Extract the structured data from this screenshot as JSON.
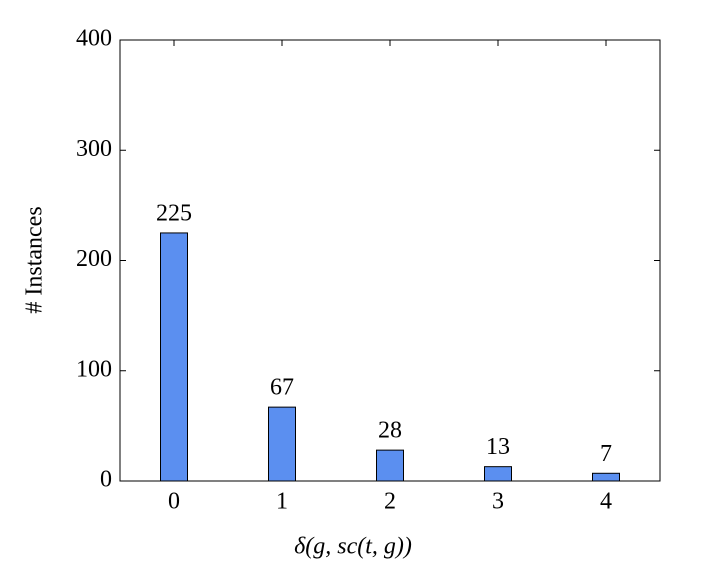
{
  "chart_data": {
    "type": "bar",
    "x": [
      0,
      1,
      2,
      3,
      4
    ],
    "values": [
      225,
      67,
      28,
      13,
      7
    ],
    "color": "#5b8ff0",
    "xlabel": "δ(g, sc(t, g))",
    "ylabel": "# Instances",
    "xlim": [
      -0.5,
      4.5
    ],
    "xticks": [
      0,
      1,
      2,
      3,
      4
    ],
    "ylim": [
      0,
      400
    ],
    "yticks": [
      0,
      100,
      200,
      300,
      400
    ],
    "grid": false
  }
}
